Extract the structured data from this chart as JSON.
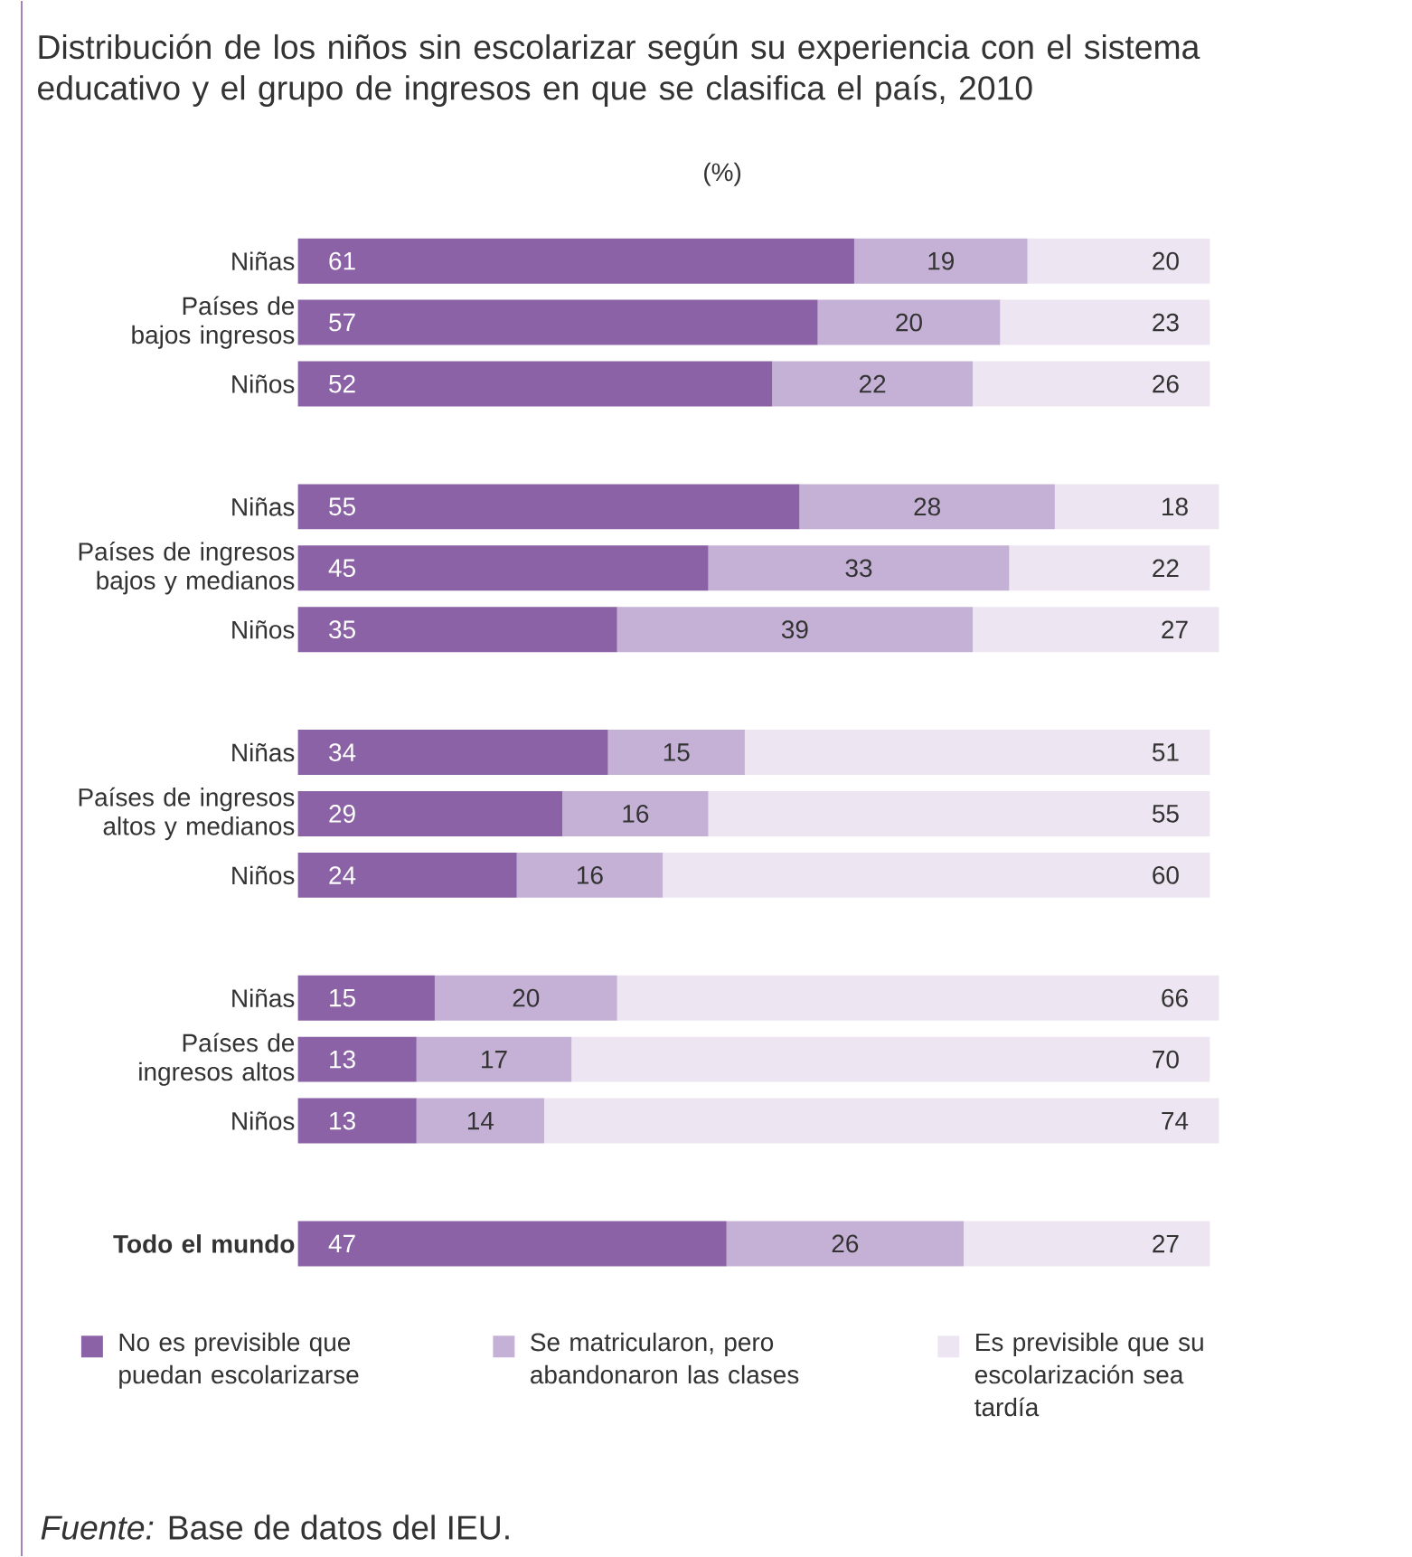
{
  "chart_data": {
    "type": "bar",
    "orientation": "horizontal",
    "stacked": true,
    "title": "Distribución de los niños sin escolarizar según su experiencia con el sistema educativo y el grupo de ingresos en que se clasifica el país, 2010",
    "subtitle": "(%)",
    "categories": [
      "Niñas",
      "Países de bajos ingresos",
      "Niños",
      null,
      "Niñas",
      "Países de ingresos bajos y medianos",
      "Niños",
      null,
      "Niñas",
      "Países de ingresos altos y medianos",
      "Niños",
      null,
      "Niñas",
      "Países de ingresos altos",
      "Niños",
      null,
      "**Todo el mundo**"
    ],
    "series": [
      {
        "name": "No es previsible que puedan escolarizarse",
        "color": "#8b62a5",
        "values": [
          61,
          57,
          52,
          null,
          55,
          45,
          35,
          null,
          34,
          29,
          24,
          null,
          15,
          13,
          13,
          null,
          47
        ]
      },
      {
        "name": "Se matricularon, pero abandonaron las clases",
        "color": "#c5b1d6",
        "values": [
          19,
          20,
          22,
          null,
          28,
          33,
          39,
          null,
          15,
          16,
          16,
          null,
          20,
          17,
          14,
          null,
          26
        ]
      },
      {
        "name": "Es previsible que su escolarización sea tardía",
        "color": "#ede6f2",
        "values": [
          20,
          23,
          26,
          null,
          18,
          22,
          27,
          null,
          51,
          55,
          60,
          null,
          66,
          70,
          74,
          null,
          27
        ]
      }
    ],
    "xlim": [
      0,
      101
    ],
    "tick_labels": "y",
    "data_labels": true,
    "legend": "bottom",
    "annotations": [
      "*Fuente:* Base de datos del IEU."
    ]
  }
}
